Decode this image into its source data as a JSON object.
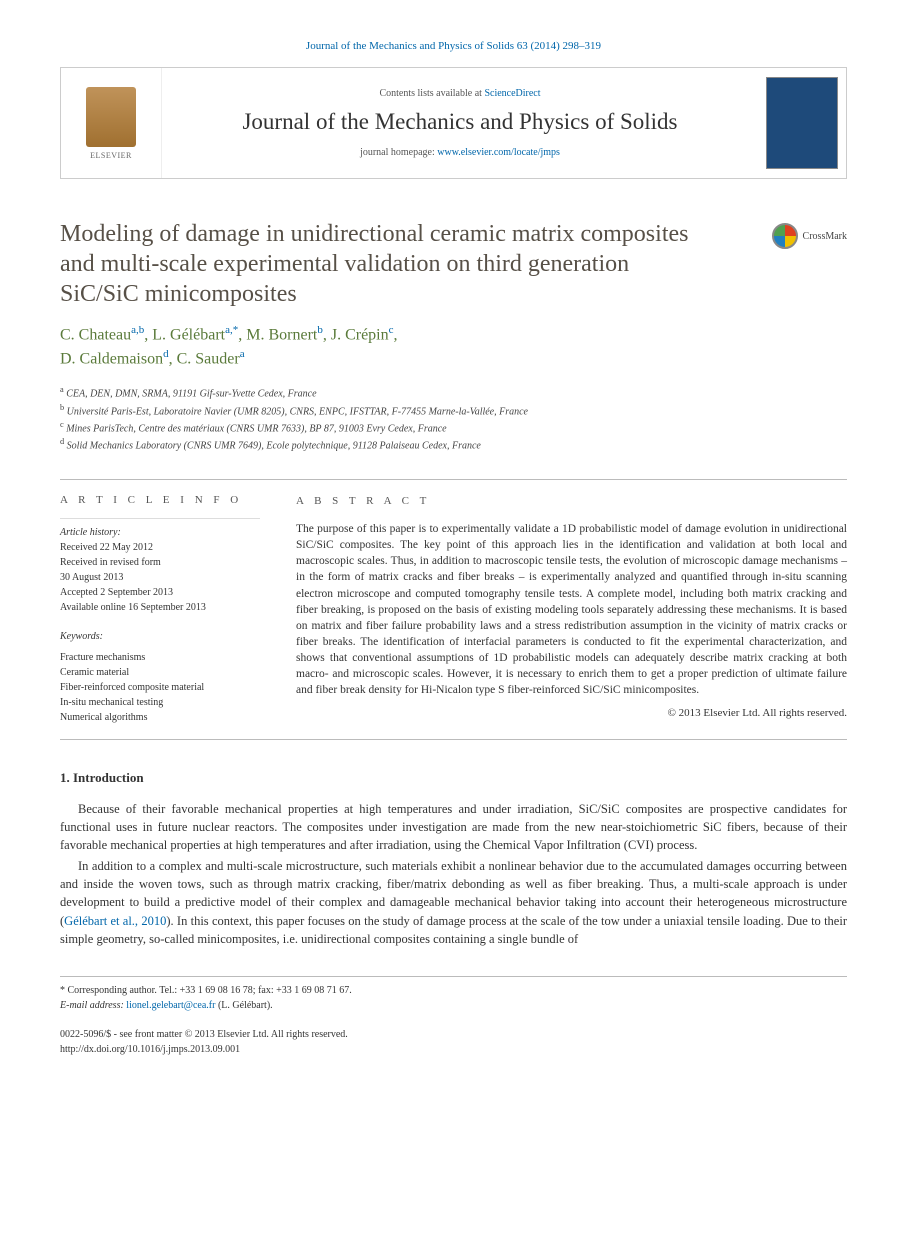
{
  "header": {
    "citation": "Journal of the Mechanics and Physics of Solids 63 (2014) 298–319",
    "contents_prefix": "Contents lists available at ",
    "contents_link": "ScienceDirect",
    "journal_title": "Journal of the Mechanics and Physics of Solids",
    "homepage_prefix": "journal homepage: ",
    "homepage_url": "www.elsevier.com/locate/jmps",
    "publisher_name": "ELSEVIER"
  },
  "crossmark_label": "CrossMark",
  "article": {
    "title": "Modeling of damage in unidirectional ceramic matrix composites and multi-scale experimental validation on third generation SiC/SiC minicomposites",
    "authors_html": "C. Chateau",
    "authors": [
      {
        "name": "C. Chateau",
        "sup": "a,b"
      },
      {
        "name": "L. Gélébart",
        "sup": "a,*"
      },
      {
        "name": "M. Bornert",
        "sup": "b"
      },
      {
        "name": "J. Crépin",
        "sup": "c"
      },
      {
        "name": "D. Caldemaison",
        "sup": "d"
      },
      {
        "name": "C. Sauder",
        "sup": "a"
      }
    ],
    "affiliations": [
      {
        "sup": "a",
        "text": "CEA, DEN, DMN, SRMA, 91191 Gif-sur-Yvette Cedex, France"
      },
      {
        "sup": "b",
        "text": "Université Paris-Est, Laboratoire Navier (UMR 8205), CNRS, ENPC, IFSTTAR, F-77455 Marne-la-Vallée, France"
      },
      {
        "sup": "c",
        "text": "Mines ParisTech, Centre des matériaux (CNRS UMR 7633), BP 87, 91003 Evry Cedex, France"
      },
      {
        "sup": "d",
        "text": "Solid Mechanics Laboratory (CNRS UMR 7649), Ecole polytechnique, 91128 Palaiseau Cedex, France"
      }
    ]
  },
  "info": {
    "heading": "A R T I C L E   I N F O",
    "history_label": "Article history:",
    "history": [
      "Received 22 May 2012",
      "Received in revised form",
      "30 August 2013",
      "Accepted 2 September 2013",
      "Available online 16 September 2013"
    ],
    "keywords_label": "Keywords:",
    "keywords": [
      "Fracture mechanisms",
      "Ceramic material",
      "Fiber-reinforced composite material",
      "In-situ mechanical testing",
      "Numerical algorithms"
    ]
  },
  "abstract": {
    "heading": "A B S T R A C T",
    "text": "The purpose of this paper is to experimentally validate a 1D probabilistic model of damage evolution in unidirectional SiC/SiC composites. The key point of this approach lies in the identification and validation at both local and macroscopic scales. Thus, in addition to macroscopic tensile tests, the evolution of microscopic damage mechanisms – in the form of matrix cracks and fiber breaks – is experimentally analyzed and quantified through in-situ scanning electron microscope and computed tomography tensile tests. A complete model, including both matrix cracking and fiber breaking, is proposed on the basis of existing modeling tools separately addressing these mechanisms. It is based on matrix and fiber failure probability laws and a stress redistribution assumption in the vicinity of matrix cracks or fiber breaks. The identification of interfacial parameters is conducted to fit the experimental characterization, and shows that conventional assumptions of 1D probabilistic models can adequately describe matrix cracking at both macro- and microscopic scales. However, it is necessary to enrich them to get a proper prediction of ultimate failure and fiber break density for Hi-Nicalon type S fiber-reinforced SiC/SiC minicomposites.",
    "copyright": "© 2013 Elsevier Ltd. All rights reserved."
  },
  "body": {
    "section_heading": "1. Introduction",
    "p1": "Because of their favorable mechanical properties at high temperatures and under irradiation, SiC/SiC composites are prospective candidates for functional uses in future nuclear reactors. The composites under investigation are made from the new near-stoichiometric SiC fibers, because of their favorable mechanical properties at high temperatures and after irradiation, using the Chemical Vapor Infiltration (CVI) process.",
    "p2_a": "In addition to a complex and multi-scale microstructure, such materials exhibit a nonlinear behavior due to the accumulated damages occurring between and inside the woven tows, such as through matrix cracking, fiber/matrix debonding as well as fiber breaking. Thus, a multi-scale approach is under development to build a predictive model of their complex and damageable mechanical behavior taking into account their heterogeneous microstructure (",
    "p2_cite": "Gélébart et al., 2010",
    "p2_b": "). In this context, this paper focuses on the study of damage process at the scale of the tow under a uniaxial tensile loading. Due to their simple geometry, so-called minicomposites, i.e. unidirectional composites containing a single bundle of"
  },
  "footer": {
    "corr_label": "* Corresponding author. Tel.: +33 1 69 08 16 78; fax: +33 1 69 08 71 67.",
    "email_label": "E-mail address: ",
    "email": "lionel.gelebart@cea.fr",
    "email_suffix": " (L. Gélébart).",
    "issn": "0022-5096/$ - see front matter © 2013 Elsevier Ltd. All rights reserved.",
    "doi": "http://dx.doi.org/10.1016/j.jmps.2013.09.001"
  },
  "colors": {
    "link": "#0066aa",
    "title": "#575047",
    "author": "#5a7a3a"
  }
}
